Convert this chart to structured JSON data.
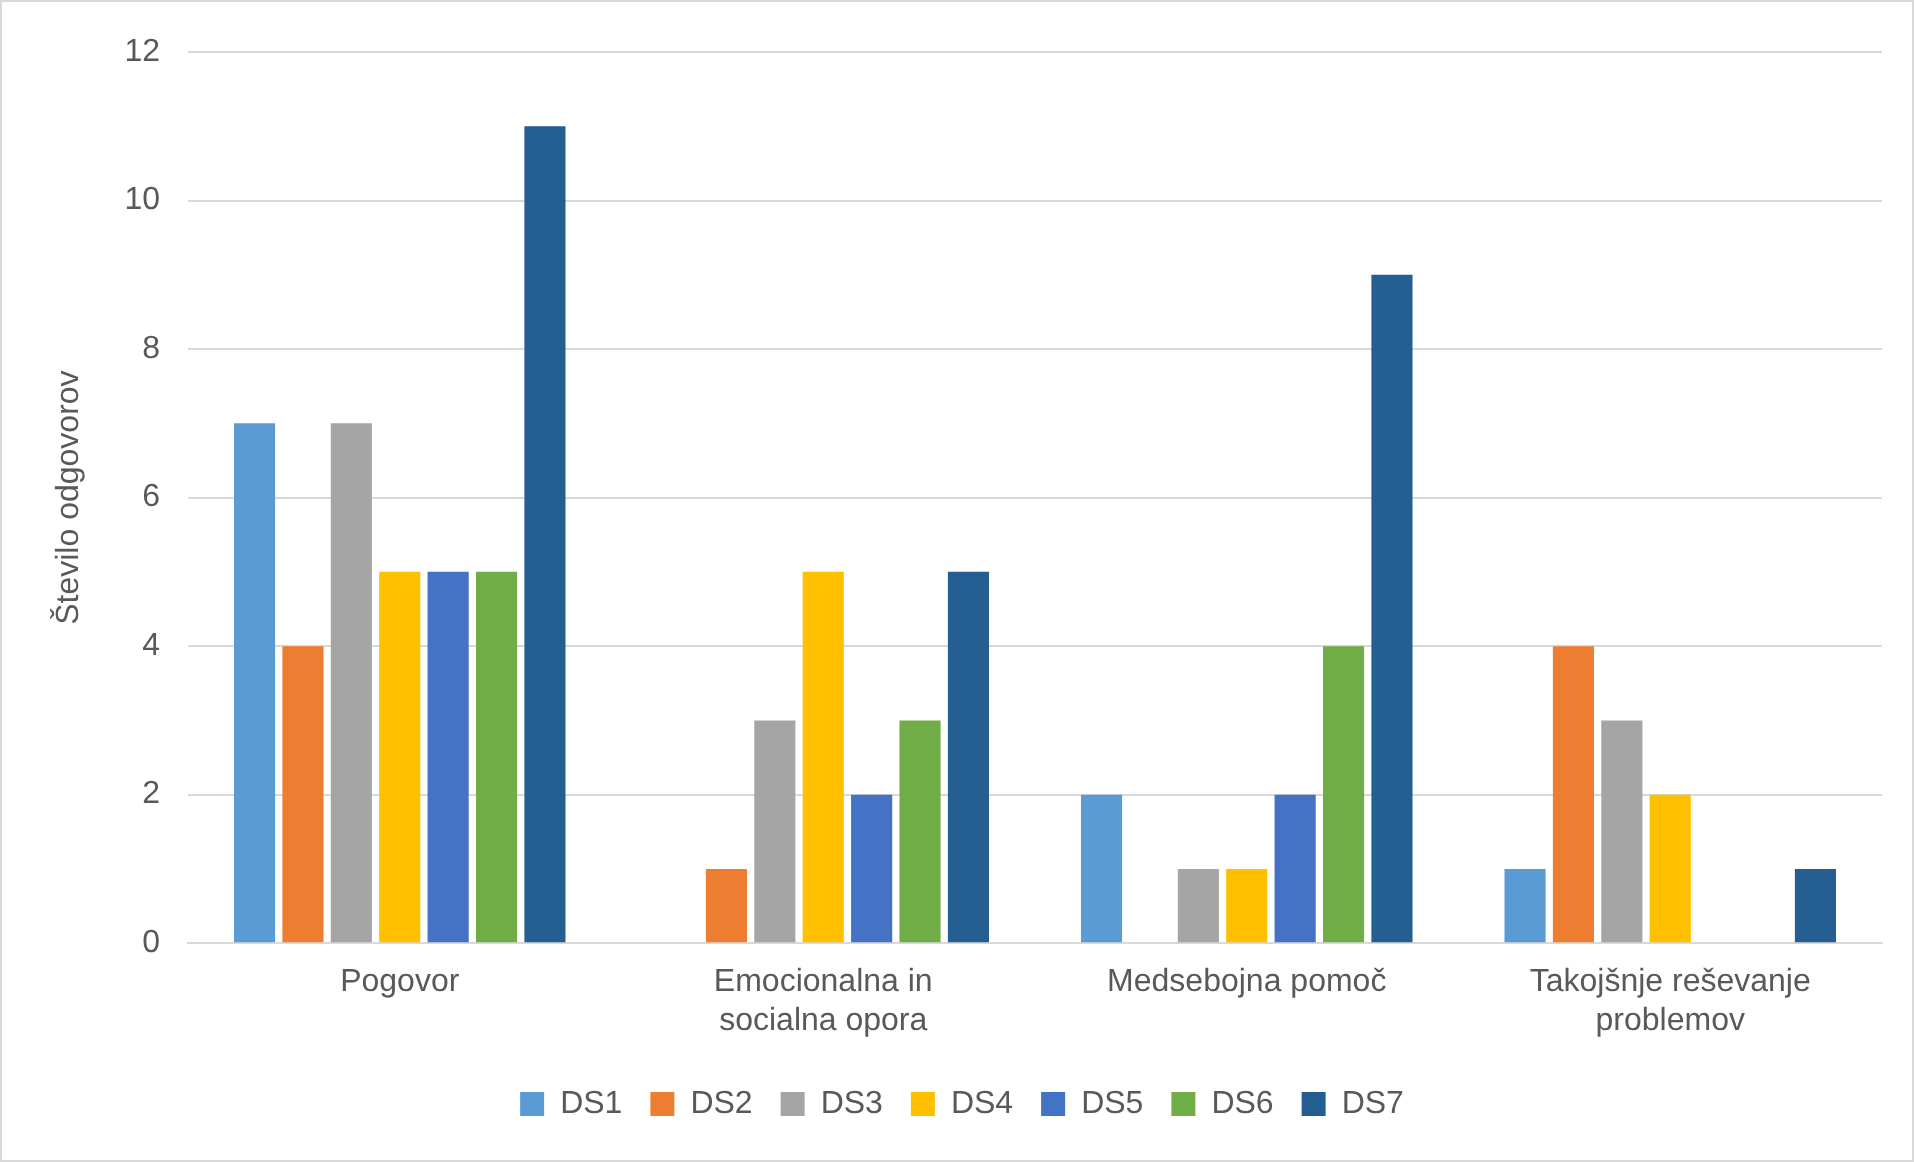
{
  "chart_data": {
    "type": "bar",
    "categories": [
      "Pogovor",
      "Emocionalna in socialna opora",
      "Medsebojna pomoč",
      "Takojšnje reševanje problemov"
    ],
    "series": [
      {
        "name": "DS1",
        "color": "#5b9bd5",
        "values": [
          7,
          0,
          2,
          1
        ]
      },
      {
        "name": "DS2",
        "color": "#ed7d31",
        "values": [
          4,
          1,
          0,
          4
        ]
      },
      {
        "name": "DS3",
        "color": "#a5a5a5",
        "values": [
          7,
          3,
          1,
          3
        ]
      },
      {
        "name": "DS4",
        "color": "#ffc000",
        "values": [
          5,
          5,
          1,
          2
        ]
      },
      {
        "name": "DS5",
        "color": "#4472c4",
        "values": [
          5,
          2,
          2,
          0
        ]
      },
      {
        "name": "DS6",
        "color": "#70ad47",
        "values": [
          5,
          3,
          4,
          0
        ]
      },
      {
        "name": "DS7",
        "color": "#255e91",
        "values": [
          11,
          5,
          9,
          1
        ]
      }
    ],
    "ylabel": "Število odgovorov",
    "ylim": [
      0,
      12
    ],
    "yticks": [
      0,
      2,
      4,
      6,
      8,
      10,
      12
    ],
    "grid": "y",
    "legend": "bottom"
  }
}
